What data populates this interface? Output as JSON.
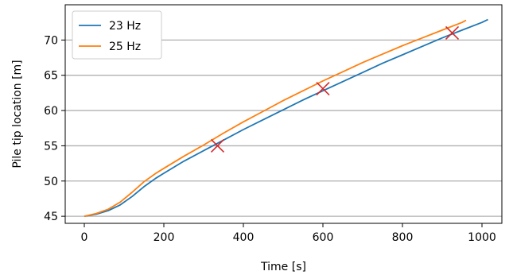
{
  "chart_data": {
    "type": "line",
    "xlabel": "Time [s]",
    "ylabel": "Pile tip location [m]",
    "xlim": [
      -48,
      1050
    ],
    "ylim": [
      44,
      75
    ],
    "xticks": [
      0,
      200,
      400,
      600,
      800,
      1000
    ],
    "yticks": [
      45,
      50,
      55,
      60,
      65,
      70
    ],
    "grid": "horizontal",
    "legend": "top-left",
    "series": [
      {
        "name": "23 Hz",
        "color": "#1f77b4",
        "x": [
          0,
          30,
          60,
          90,
          120,
          150,
          180,
          200,
          250,
          300,
          350,
          400,
          450,
          500,
          550,
          600,
          650,
          700,
          750,
          800,
          850,
          900,
          950,
          1000,
          1015
        ],
        "y": [
          45.0,
          45.3,
          45.8,
          46.6,
          47.8,
          49.2,
          50.4,
          51.1,
          52.8,
          54.3,
          55.8,
          57.3,
          58.7,
          60.1,
          61.5,
          62.8,
          64.1,
          65.4,
          66.7,
          67.9,
          69.1,
          70.3,
          71.4,
          72.5,
          72.9
        ]
      },
      {
        "name": "25 Hz",
        "color": "#ff7f0e",
        "x": [
          0,
          30,
          60,
          90,
          120,
          150,
          180,
          200,
          250,
          300,
          350,
          400,
          450,
          500,
          550,
          600,
          650,
          700,
          750,
          800,
          850,
          900,
          950,
          960
        ],
        "y": [
          45.0,
          45.4,
          46.0,
          47.0,
          48.4,
          49.9,
          51.1,
          51.8,
          53.5,
          55.1,
          56.8,
          58.4,
          59.9,
          61.4,
          62.8,
          64.2,
          65.5,
          66.8,
          68.0,
          69.2,
          70.3,
          71.4,
          72.5,
          72.8
        ]
      }
    ],
    "markers": [
      {
        "x": 335,
        "y": 55.0,
        "color": "#d62728"
      },
      {
        "x": 600,
        "y": 63.1,
        "color": "#d62728"
      },
      {
        "x": 925,
        "y": 71.0,
        "color": "#d62728"
      }
    ]
  }
}
